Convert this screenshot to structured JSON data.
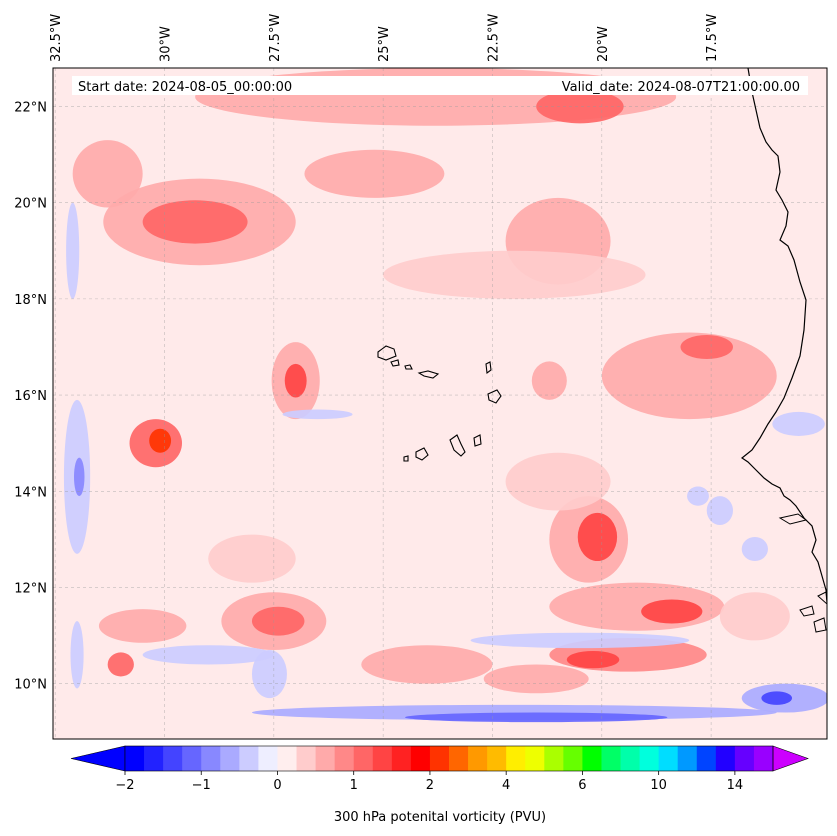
{
  "header": {
    "start_date": "Start date: 2024-08-05_00:00:00",
    "valid_date": "Valid_date: 2024-08-07T21:00:00.00"
  },
  "axes": {
    "longitude_labels": [
      "32.5°W",
      "30°W",
      "27.5°W",
      "25°W",
      "22.5°W",
      "20°W",
      "17.5°W"
    ],
    "longitude_values": [
      -32.5,
      -30,
      -27.5,
      -25,
      -22.5,
      -20,
      -17.5
    ],
    "latitude_labels": [
      "22°N",
      "20°N",
      "18°N",
      "16°N",
      "14°N",
      "12°N",
      "10°N"
    ],
    "latitude_values": [
      22,
      20,
      18,
      16,
      14,
      12,
      10
    ],
    "lon_range": [
      -32.55,
      -14.85
    ],
    "lat_range": [
      8.85,
      22.8
    ]
  },
  "colorbar": {
    "label": "300 hPa potenital vorticity (PVU)",
    "tick_labels": [
      "−2",
      "−1",
      "0",
      "1",
      "2",
      "4",
      "6",
      "10",
      "14"
    ],
    "tick_bin_index": [
      0,
      4,
      8,
      12,
      16,
      20,
      24,
      28,
      32
    ],
    "colors": [
      "#0000ff",
      "#2222ff",
      "#4444ff",
      "#6666ff",
      "#8888ff",
      "#aaaaff",
      "#ccccff",
      "#eeeeff",
      "#ffeeee",
      "#ffcccc",
      "#ffaaaa",
      "#ff8888",
      "#ff6666",
      "#ff4444",
      "#ff2222",
      "#ff0000",
      "#ff3300",
      "#ff6600",
      "#ff9900",
      "#ffbb00",
      "#ffee00",
      "#eeff00",
      "#aaff00",
      "#66ff00",
      "#00ff00",
      "#00ff66",
      "#00ffaa",
      "#00ffdd",
      "#00ddff",
      "#0099ff",
      "#0044ff",
      "#2200ff",
      "#6600ff",
      "#9900ff"
    ],
    "under_color": "#0000ff",
    "over_color": "#cc00ff"
  },
  "field": {
    "background_color": "#ffeaea",
    "features": [
      {
        "lon": -29.2,
        "lat": 19.6,
        "rx": 2.2,
        "ry": 0.9,
        "value": 0.55
      },
      {
        "lon": -29.3,
        "lat": 19.6,
        "rx": 1.2,
        "ry": 0.45,
        "value": 1.2
      },
      {
        "lon": -31.3,
        "lat": 20.6,
        "rx": 0.8,
        "ry": 0.7,
        "value": 0.5
      },
      {
        "lon": -23.8,
        "lat": 22.2,
        "rx": 5.5,
        "ry": 0.6,
        "value": 0.5
      },
      {
        "lon": -20.5,
        "lat": 22.0,
        "rx": 1.0,
        "ry": 0.35,
        "value": 1.2
      },
      {
        "lon": -25.2,
        "lat": 20.6,
        "rx": 1.6,
        "ry": 0.5,
        "value": 0.5
      },
      {
        "lon": -21.0,
        "lat": 19.2,
        "rx": 1.2,
        "ry": 0.9,
        "value": 0.5
      },
      {
        "lon": -22.0,
        "lat": 18.5,
        "rx": 3.0,
        "ry": 0.5,
        "value": 0.4
      },
      {
        "lon": -30.2,
        "lat": 15.0,
        "rx": 0.6,
        "ry": 0.5,
        "value": 1.0
      },
      {
        "lon": -30.1,
        "lat": 15.05,
        "rx": 0.25,
        "ry": 0.25,
        "value": 2.1
      },
      {
        "lon": -27.0,
        "lat": 16.3,
        "rx": 0.55,
        "ry": 0.8,
        "value": 0.55
      },
      {
        "lon": -27.0,
        "lat": 16.3,
        "rx": 0.25,
        "ry": 0.35,
        "value": 1.3
      },
      {
        "lon": -20.3,
        "lat": 13.0,
        "rx": 0.9,
        "ry": 0.9,
        "value": 0.55
      },
      {
        "lon": -20.1,
        "lat": 13.05,
        "rx": 0.45,
        "ry": 0.5,
        "value": 1.3
      },
      {
        "lon": -21.2,
        "lat": 16.3,
        "rx": 0.4,
        "ry": 0.4,
        "value": 0.7
      },
      {
        "lon": -18.0,
        "lat": 16.4,
        "rx": 2.0,
        "ry": 0.9,
        "value": 0.5
      },
      {
        "lon": -17.6,
        "lat": 17.0,
        "rx": 0.6,
        "ry": 0.25,
        "value": 1.2
      },
      {
        "lon": -27.5,
        "lat": 11.3,
        "rx": 1.2,
        "ry": 0.6,
        "value": 0.55
      },
      {
        "lon": -27.4,
        "lat": 11.3,
        "rx": 0.6,
        "ry": 0.3,
        "value": 1.2
      },
      {
        "lon": -30.5,
        "lat": 11.2,
        "rx": 1.0,
        "ry": 0.35,
        "value": 0.55
      },
      {
        "lon": -24.0,
        "lat": 10.4,
        "rx": 1.5,
        "ry": 0.4,
        "value": 0.5
      },
      {
        "lon": -19.2,
        "lat": 11.6,
        "rx": 2.0,
        "ry": 0.5,
        "value": 0.7
      },
      {
        "lon": -18.4,
        "lat": 11.5,
        "rx": 0.7,
        "ry": 0.25,
        "value": 1.4
      },
      {
        "lon": -19.4,
        "lat": 10.6,
        "rx": 1.8,
        "ry": 0.35,
        "value": 0.9
      },
      {
        "lon": -20.2,
        "lat": 10.5,
        "rx": 0.6,
        "ry": 0.18,
        "value": 1.4
      },
      {
        "lon": -21.5,
        "lat": 10.1,
        "rx": 1.2,
        "ry": 0.3,
        "value": 0.7
      },
      {
        "lon": -28.0,
        "lat": 12.6,
        "rx": 1.0,
        "ry": 0.5,
        "value": 0.4
      },
      {
        "lon": -21.0,
        "lat": 14.2,
        "rx": 1.2,
        "ry": 0.6,
        "value": 0.4
      },
      {
        "lon": -16.5,
        "lat": 11.4,
        "rx": 0.8,
        "ry": 0.5,
        "value": 0.4
      },
      {
        "lon": -31.0,
        "lat": 10.4,
        "rx": 0.3,
        "ry": 0.25,
        "value": 1.0
      },
      {
        "lon": -32.0,
        "lat": 14.3,
        "rx": 0.3,
        "ry": 1.6,
        "value": -0.4
      },
      {
        "lon": -31.95,
        "lat": 14.3,
        "rx": 0.12,
        "ry": 0.4,
        "value": -0.8
      },
      {
        "lon": -32.1,
        "lat": 19.0,
        "rx": 0.15,
        "ry": 1.0,
        "value": -0.5
      },
      {
        "lon": -32.0,
        "lat": 10.6,
        "rx": 0.15,
        "ry": 0.7,
        "value": -0.5
      },
      {
        "lon": -22.0,
        "lat": 9.4,
        "rx": 6.0,
        "ry": 0.16,
        "value": -0.6
      },
      {
        "lon": -21.5,
        "lat": 9.3,
        "rx": 3.0,
        "ry": 0.1,
        "value": -1.2
      },
      {
        "lon": -15.8,
        "lat": 9.7,
        "rx": 1.0,
        "ry": 0.3,
        "value": -0.6
      },
      {
        "lon": -16.0,
        "lat": 9.7,
        "rx": 0.35,
        "ry": 0.14,
        "value": -1.5
      },
      {
        "lon": -20.5,
        "lat": 10.9,
        "rx": 2.5,
        "ry": 0.16,
        "value": -0.5
      },
      {
        "lon": -27.6,
        "lat": 10.2,
        "rx": 0.4,
        "ry": 0.5,
        "value": -0.5
      },
      {
        "lon": -29.0,
        "lat": 10.6,
        "rx": 1.5,
        "ry": 0.2,
        "value": -0.3
      },
      {
        "lon": -26.5,
        "lat": 15.6,
        "rx": 0.8,
        "ry": 0.1,
        "value": -0.3
      },
      {
        "lon": -17.3,
        "lat": 13.6,
        "rx": 0.3,
        "ry": 0.3,
        "value": -0.5
      },
      {
        "lon": -17.8,
        "lat": 13.9,
        "rx": 0.25,
        "ry": 0.2,
        "value": -0.5
      },
      {
        "lon": -15.5,
        "lat": 15.4,
        "rx": 0.6,
        "ry": 0.25,
        "value": -0.3
      },
      {
        "lon": -16.5,
        "lat": 12.8,
        "rx": 0.3,
        "ry": 0.25,
        "value": -0.4
      }
    ],
    "coast_color": "#000000"
  }
}
